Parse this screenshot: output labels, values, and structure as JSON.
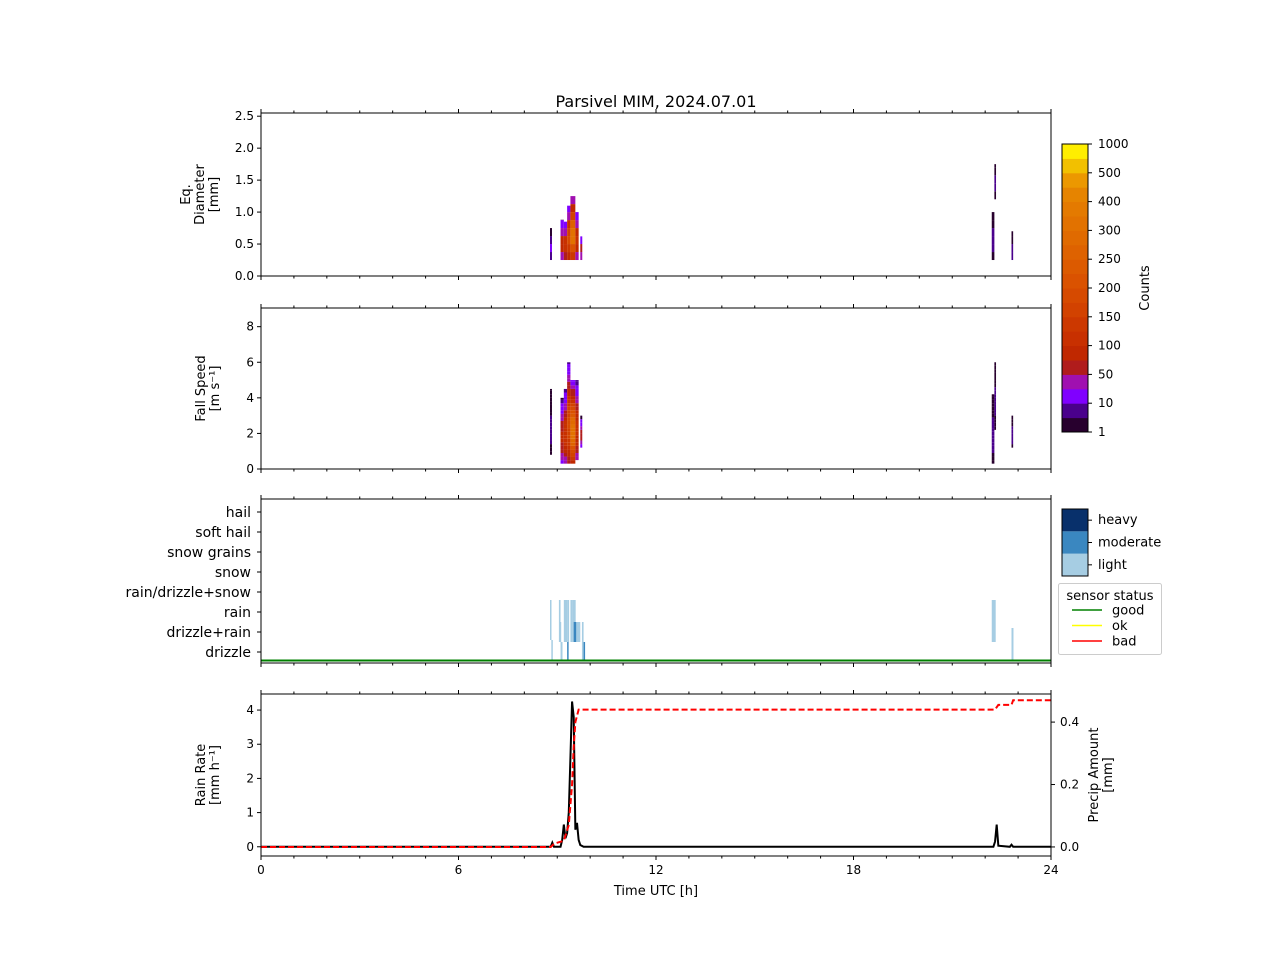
{
  "chart_data": [
    {
      "type": "heatmap",
      "title": "Parsivel MIM, 2024.07.01",
      "ylabel": [
        "Eq.",
        "Diameter",
        "[mm]"
      ],
      "ylim": [
        0,
        2.55
      ],
      "yticks": [
        "0.0",
        "0.5",
        "1.0",
        "1.5",
        "2.0",
        "2.5"
      ],
      "ytick_values": [
        0,
        0.5,
        1.0,
        1.5,
        2.0,
        2.5
      ],
      "xlim": [
        0,
        24
      ],
      "columns_t0_t1_lo_hi_peakcounts": [
        [
          8.78,
          8.84,
          0.25,
          0.75,
          12
        ],
        [
          9.1,
          9.2,
          0.25,
          0.88,
          90
        ],
        [
          9.2,
          9.3,
          0.25,
          0.85,
          120
        ],
        [
          9.3,
          9.4,
          0.25,
          1.1,
          180
        ],
        [
          9.4,
          9.55,
          0.25,
          1.25,
          320
        ],
        [
          9.55,
          9.65,
          0.25,
          1.0,
          110
        ],
        [
          9.7,
          9.76,
          0.25,
          0.62,
          60
        ],
        [
          22.2,
          22.28,
          0.25,
          1.0,
          10
        ],
        [
          22.28,
          22.33,
          1.2,
          1.75,
          8
        ],
        [
          22.8,
          22.85,
          0.25,
          0.7,
          10
        ]
      ]
    },
    {
      "type": "heatmap",
      "ylabel": [
        "Fall Speed",
        "[m s⁻¹]"
      ],
      "ylim": [
        0,
        9.05
      ],
      "yticks": [
        "0",
        "2",
        "4",
        "6",
        "8"
      ],
      "ytick_values": [
        0,
        2,
        4,
        6,
        8
      ],
      "xlim": [
        0,
        24
      ],
      "columns_t0_t1_lo_hi_peakcounts": [
        [
          8.78,
          8.84,
          0.8,
          4.5,
          8
        ],
        [
          9.1,
          9.2,
          0.3,
          4.0,
          80
        ],
        [
          9.2,
          9.3,
          0.3,
          4.5,
          120
        ],
        [
          9.3,
          9.4,
          0.3,
          6.0,
          180
        ],
        [
          9.4,
          9.55,
          0.3,
          5.0,
          320
        ],
        [
          9.55,
          9.65,
          0.5,
          5.0,
          110
        ],
        [
          9.7,
          9.76,
          1.2,
          3.0,
          60
        ],
        [
          22.2,
          22.28,
          0.3,
          4.2,
          10
        ],
        [
          22.28,
          22.33,
          2.2,
          6.0,
          8
        ],
        [
          22.8,
          22.85,
          1.2,
          3.0,
          10
        ]
      ]
    },
    {
      "type": "heatmap",
      "categories": [
        "drizzle",
        "drizzle+rain",
        "rain",
        "rain/drizzle+snow",
        "snow",
        "snow grains",
        "soft hail",
        "hail"
      ],
      "intensity_labels": [
        "light",
        "moderate",
        "heavy"
      ],
      "segments_t0_t1_catlo_cathi_intensity": [
        [
          8.78,
          8.82,
          0.6,
          2.6,
          0
        ],
        [
          8.82,
          8.86,
          -0.4,
          0.6,
          0
        ],
        [
          9.05,
          9.1,
          1.5,
          2.6,
          0
        ],
        [
          9.05,
          9.12,
          0.5,
          1.5,
          0
        ],
        [
          9.1,
          9.16,
          -0.4,
          0.5,
          0
        ],
        [
          9.2,
          9.3,
          0.5,
          2.6,
          0
        ],
        [
          9.3,
          9.36,
          0.5,
          2.6,
          0
        ],
        [
          9.3,
          9.34,
          -0.4,
          0.5,
          1
        ],
        [
          9.4,
          9.46,
          0.5,
          2.6,
          0
        ],
        [
          9.46,
          9.56,
          0.5,
          2.6,
          0
        ],
        [
          9.5,
          9.58,
          0.5,
          1.5,
          1
        ],
        [
          9.58,
          9.7,
          0.5,
          1.5,
          0
        ],
        [
          9.75,
          9.8,
          -0.4,
          1.5,
          0
        ],
        [
          9.8,
          9.84,
          -0.4,
          0.5,
          1
        ],
        [
          22.2,
          22.32,
          0.5,
          2.6,
          0
        ],
        [
          22.8,
          22.86,
          -0.4,
          1.2,
          0
        ]
      ],
      "sensor_status_legend": {
        "title": "sensor status",
        "entries": [
          "good",
          "ok",
          "bad"
        ],
        "current": "good"
      }
    },
    {
      "type": "line",
      "xlabel": "Time UTC [h]",
      "xticks": [
        "0",
        "6",
        "12",
        "18",
        "24"
      ],
      "xtick_values": [
        0,
        6,
        12,
        18,
        24
      ],
      "ylabel": [
        "Rain Rate",
        "[mm h⁻¹]"
      ],
      "ylim": [
        -0.27,
        4.47
      ],
      "yticks": [
        "0",
        "1",
        "2",
        "3",
        "4"
      ],
      "ytick_values": [
        0,
        1,
        2,
        3,
        4
      ],
      "ylabel_right": [
        "Precip Amount",
        "[mm]"
      ],
      "ylim_right": [
        -0.029,
        0.49
      ],
      "yticks_right": [
        "0.0",
        "0.2",
        "0.4"
      ],
      "ytick_values_right": [
        0,
        0.2,
        0.4
      ],
      "series": [
        {
          "name": "Rain Rate",
          "style": "solid",
          "color": "#000000",
          "x": [
            0,
            8.8,
            8.85,
            8.9,
            9.1,
            9.15,
            9.2,
            9.25,
            9.3,
            9.35,
            9.4,
            9.45,
            9.5,
            9.55,
            9.6,
            9.65,
            9.7,
            9.8,
            22.25,
            22.3,
            22.35,
            22.4,
            22.75,
            22.8,
            22.85,
            24
          ],
          "y": [
            0,
            0,
            0.12,
            0,
            0,
            0.2,
            0.65,
            0.25,
            0.4,
            1.0,
            2.6,
            4.25,
            3.8,
            0.5,
            0.7,
            0.2,
            0.05,
            0,
            0,
            0.15,
            0.65,
            0.03,
            0,
            0.06,
            0,
            0
          ]
        },
        {
          "name": "Precip Amount",
          "style": "dashed",
          "color": "#ff0000",
          "axis": "right",
          "x": [
            0,
            8.8,
            8.9,
            9.2,
            9.35,
            9.45,
            9.5,
            9.55,
            9.65,
            22.3,
            22.4,
            22.8,
            22.85,
            24
          ],
          "y": [
            0,
            0,
            0.01,
            0.02,
            0.07,
            0.2,
            0.32,
            0.4,
            0.44,
            0.44,
            0.455,
            0.455,
            0.47,
            0.47
          ]
        }
      ]
    }
  ],
  "colorbar": {
    "label": "Counts",
    "ticks": [
      "1",
      "10",
      "50",
      "100",
      "150",
      "200",
      "250",
      "300",
      "400",
      "500",
      "1000"
    ],
    "tick_values": [
      1,
      10,
      50,
      100,
      150,
      200,
      250,
      300,
      400,
      500,
      1000
    ],
    "colors": [
      "#28002e",
      "#4a008c",
      "#8000ff",
      "#a010b0",
      "#b01c1c",
      "#c02800",
      "#c83000",
      "#cc3800",
      "#d24200",
      "#d64a00",
      "#da5200",
      "#dc5a00",
      "#de6200",
      "#e06a00",
      "#e27200",
      "#e47a00",
      "#e68400",
      "#ec9800",
      "#f2c000",
      "#ffee00"
    ]
  },
  "intensity_colors": [
    "#a6cde3",
    "#3a87c0",
    "#08306b"
  ],
  "status_colors": [
    "#008000",
    "#ffff00",
    "#ff0000"
  ]
}
